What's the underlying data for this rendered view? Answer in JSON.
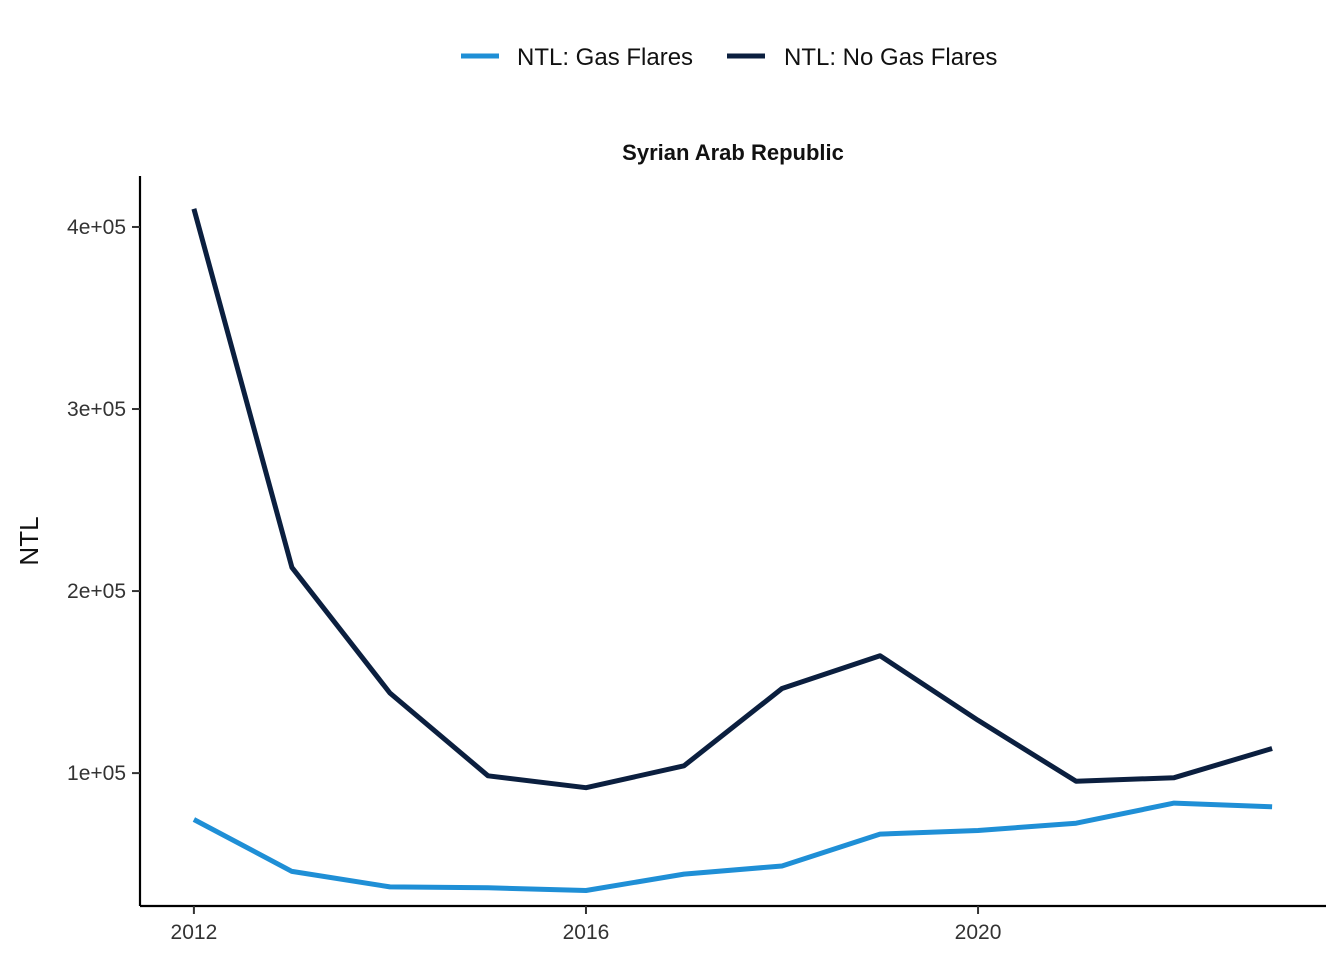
{
  "chart_data": {
    "type": "line",
    "title": "Syrian Arab Republic",
    "xlabel": "",
    "ylabel": "NTL",
    "x": [
      2012,
      2013,
      2014,
      2015,
      2016,
      2017,
      2018,
      2019,
      2020,
      2021,
      2022,
      2023
    ],
    "xlim": [
      2011.45,
      2023.55
    ],
    "ylim": [
      27000,
      428000
    ],
    "x_ticks": [
      2012,
      2016,
      2020
    ],
    "x_tick_labels": [
      "2012",
      "2016",
      "2020"
    ],
    "y_ticks": [
      100000,
      200000,
      300000,
      400000
    ],
    "y_tick_labels": [
      "1e+05",
      "2e+05",
      "3e+05",
      "4e+05"
    ],
    "grid": false,
    "legend_position": "top",
    "series": [
      {
        "name": "NTL: Gas Flares",
        "color": "#1f8fd6",
        "values": [
          74500,
          46000,
          37500,
          37000,
          35500,
          44500,
          49000,
          66500,
          68500,
          72500,
          83500,
          81500
        ]
      },
      {
        "name": "NTL: No Gas Flares",
        "color": "#0b1f3f",
        "values": [
          410000,
          213000,
          144000,
          98500,
          92000,
          104000,
          146500,
          164500,
          129000,
          95500,
          97500,
          113500
        ]
      }
    ]
  }
}
